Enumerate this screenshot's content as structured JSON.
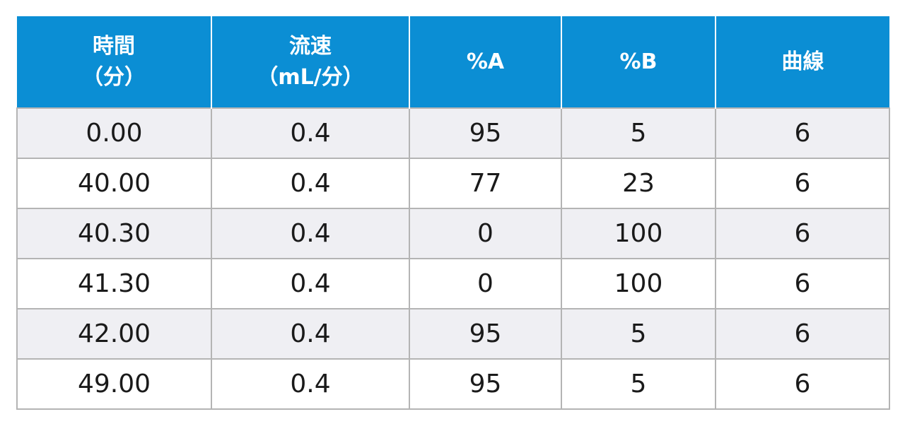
{
  "table": {
    "header_color": "#0b8ed4",
    "headers": [
      {
        "line1": "時間",
        "line2": "（分）"
      },
      {
        "line1": "流速",
        "line2": "（mL/分）"
      },
      {
        "line1": "%A",
        "line2": ""
      },
      {
        "line1": "%B",
        "line2": ""
      },
      {
        "line1": "曲線",
        "line2": ""
      }
    ],
    "rows": [
      [
        "0.00",
        "0.4",
        "95",
        "5",
        "6"
      ],
      [
        "40.00",
        "0.4",
        "77",
        "23",
        "6"
      ],
      [
        "40.30",
        "0.4",
        "0",
        "100",
        "6"
      ],
      [
        "41.30",
        "0.4",
        "0",
        "100",
        "6"
      ],
      [
        "42.00",
        "0.4",
        "95",
        "5",
        "6"
      ],
      [
        "49.00",
        "0.4",
        "95",
        "5",
        "6"
      ]
    ]
  }
}
